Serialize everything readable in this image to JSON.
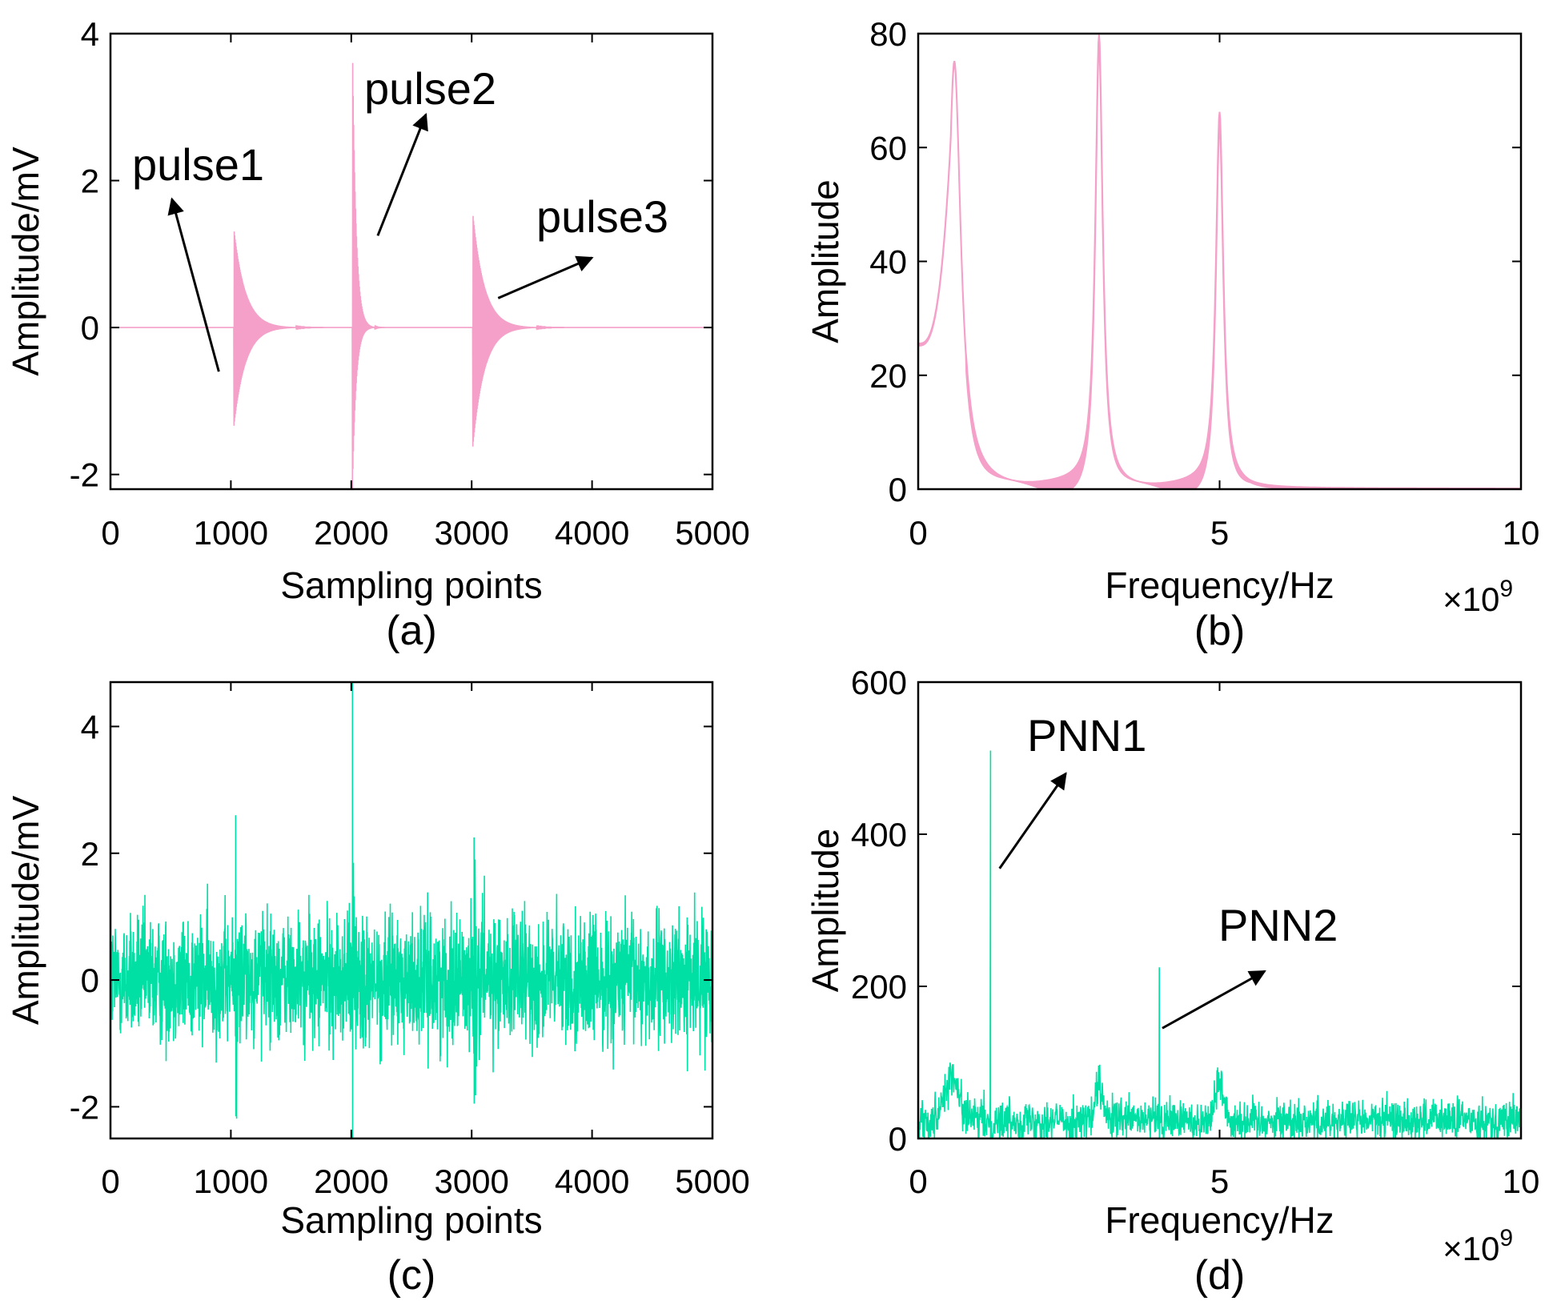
{
  "chart_data": [
    {
      "panel": "(a)",
      "type": "line",
      "xlabel": "Sampling points",
      "ylabel": "Amplitude/mV",
      "xlim": [
        0,
        5000
      ],
      "ylim": [
        -2.2,
        4
      ],
      "xticks": [
        0,
        1000,
        2000,
        3000,
        4000,
        5000
      ],
      "yticks": [
        -2,
        0,
        2,
        4
      ],
      "color": "#f4a0c8",
      "pulses": [
        {
          "name": "pulse1",
          "center": 1025,
          "pos_peak": 1.35,
          "neg_peak": -1.35
        },
        {
          "name": "pulse2",
          "center": 2010,
          "pos_peak": 3.85,
          "neg_peak": -2.2
        },
        {
          "name": "pulse3",
          "center": 3010,
          "pos_peak": 1.55,
          "neg_peak": -1.62
        }
      ],
      "annotations": [
        {
          "text": "pulse1",
          "tail": [
            900,
            -0.6
          ],
          "head": [
            510,
            1.75
          ]
        },
        {
          "text": "pulse2",
          "tail": [
            2220,
            1.25
          ],
          "head": [
            2620,
            2.9
          ]
        },
        {
          "text": "pulse3",
          "tail": [
            3220,
            0.4
          ],
          "head": [
            4000,
            0.95
          ]
        }
      ]
    },
    {
      "panel": "(b)",
      "type": "line",
      "xlabel": "Frequency/Hz",
      "ylabel": "Amplitude",
      "xlim": [
        0,
        10
      ],
      "ylim": [
        0,
        80
      ],
      "xticks": [
        0,
        5,
        10
      ],
      "yticks": [
        0,
        20,
        40,
        60,
        80
      ],
      "x_multiplier": "×10",
      "x_multiplier_exp": "9",
      "color": "#f4a0c8",
      "peaks": [
        {
          "freq": 0.6,
          "amplitude": 75
        },
        {
          "freq": 3.0,
          "amplitude": 79
        },
        {
          "freq": 5.0,
          "amplitude": 65.5
        }
      ],
      "start_value": 25.5
    },
    {
      "panel": "(c)",
      "type": "line",
      "xlabel": "Sampling points",
      "ylabel": "Amplitude/mV",
      "xlim": [
        0,
        5000
      ],
      "ylim": [
        -2.5,
        4.7
      ],
      "xticks": [
        0,
        1000,
        2000,
        3000,
        4000,
        5000
      ],
      "yticks": [
        -2,
        0,
        2,
        4
      ],
      "color": "#00e0a4",
      "noise_level": 0.5,
      "spikes": [
        {
          "x": 1040,
          "max": 2.6,
          "min": -2.15
        },
        {
          "x": 2010,
          "max": 4.7,
          "min": -2.5
        },
        {
          "x": 3020,
          "max": 2.25,
          "min": -1.95
        }
      ]
    },
    {
      "panel": "(d)",
      "type": "line",
      "xlabel": "Frequency/Hz",
      "ylabel": "Amplitude",
      "xlim": [
        0,
        10
      ],
      "ylim": [
        0,
        600
      ],
      "xticks": [
        0,
        5,
        10
      ],
      "yticks": [
        0,
        200,
        400,
        600
      ],
      "x_multiplier": "×10",
      "x_multiplier_exp": "9",
      "color": "#00e0a4",
      "lines": [
        {
          "name": "PNN1",
          "freq": 1.2,
          "amplitude": 510
        },
        {
          "name": "PNN2",
          "freq": 4.0,
          "amplitude": 225
        }
      ],
      "annotations": [
        {
          "text": "PNN1",
          "tail": [
            1.35,
            355
          ],
          "head": [
            2.45,
            480
          ]
        },
        {
          "text": "PNN2",
          "tail": [
            4.05,
            145
          ],
          "head": [
            5.75,
            220
          ]
        }
      ]
    }
  ]
}
